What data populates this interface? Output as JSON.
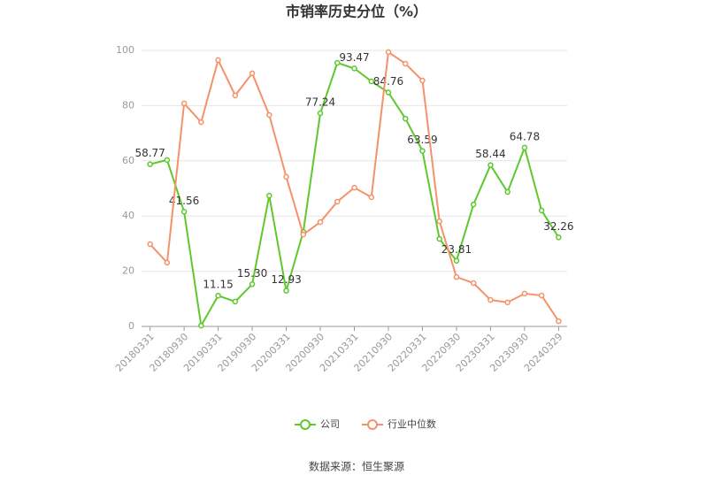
{
  "chart_data": {
    "type": "line",
    "title": "市销率历史分位（%）",
    "categories": [
      "20180331",
      null,
      "20180930",
      null,
      "20190331",
      null,
      "20190930",
      null,
      "20200331",
      null,
      "20200930",
      null,
      "20210331",
      null,
      "20210930",
      null,
      "20220331",
      null,
      "20220930",
      null,
      "20230331",
      null,
      "20230930",
      null,
      "20240329"
    ],
    "series": [
      {
        "name": "公司",
        "color": "#5ec82e",
        "values": [
          58.77,
          60.3,
          41.56,
          0.3,
          11.15,
          9.0,
          15.3,
          47.4,
          12.93,
          34.3,
          77.24,
          95.5,
          93.47,
          88.8,
          84.76,
          75.3,
          63.59,
          31.7,
          23.81,
          44.2,
          58.44,
          48.7,
          64.78,
          42.0,
          32.26
        ],
        "value_labels": [
          "58.77",
          null,
          "41.56",
          null,
          "11.15",
          null,
          "15.30",
          null,
          "12.93",
          null,
          "77.24",
          null,
          "93.47",
          null,
          "84.76",
          null,
          "63.59",
          null,
          "23.81",
          null,
          "58.44",
          null,
          "64.78",
          null,
          "32.26"
        ]
      },
      {
        "name": "行业中位数",
        "color": "#f4926b",
        "values": [
          29.8,
          23.1,
          80.8,
          74.0,
          96.5,
          83.7,
          91.7,
          76.6,
          54.2,
          33.3,
          37.8,
          45.2,
          50.3,
          46.8,
          99.4,
          95.2,
          89.1,
          38.1,
          17.9,
          15.7,
          9.6,
          8.7,
          11.9,
          11.2,
          1.9
        ]
      }
    ],
    "ylim": [
      0,
      100
    ],
    "yticks": [
      0,
      20,
      40,
      60,
      80,
      100
    ],
    "grid": true,
    "source": "数据来源：恒生聚源"
  }
}
